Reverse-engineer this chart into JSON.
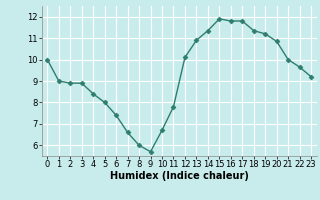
{
  "x": [
    0,
    1,
    2,
    3,
    4,
    5,
    6,
    7,
    8,
    9,
    10,
    11,
    12,
    13,
    14,
    15,
    16,
    17,
    18,
    19,
    20,
    21,
    22,
    23
  ],
  "y": [
    10.0,
    9.0,
    8.9,
    8.9,
    8.4,
    8.0,
    7.4,
    6.6,
    6.0,
    5.7,
    6.7,
    7.8,
    10.1,
    10.9,
    11.35,
    11.9,
    11.8,
    11.8,
    11.35,
    11.2,
    10.85,
    10.0,
    9.65,
    9.2
  ],
  "xlabel": "Humidex (Indice chaleur)",
  "ylim": [
    5.5,
    12.5
  ],
  "xlim": [
    -0.5,
    23.5
  ],
  "yticks": [
    6,
    7,
    8,
    9,
    10,
    11,
    12
  ],
  "xticks": [
    0,
    1,
    2,
    3,
    4,
    5,
    6,
    7,
    8,
    9,
    10,
    11,
    12,
    13,
    14,
    15,
    16,
    17,
    18,
    19,
    20,
    21,
    22,
    23
  ],
  "line_color": "#2e7d6e",
  "bg_color": "#c8ecec",
  "grid_color": "#ffffff",
  "marker": "D",
  "marker_size": 2.5,
  "line_width": 1.0,
  "xlabel_fontsize": 7,
  "tick_fontsize": 6,
  "fig_width": 3.2,
  "fig_height": 2.0,
  "dpi": 100
}
